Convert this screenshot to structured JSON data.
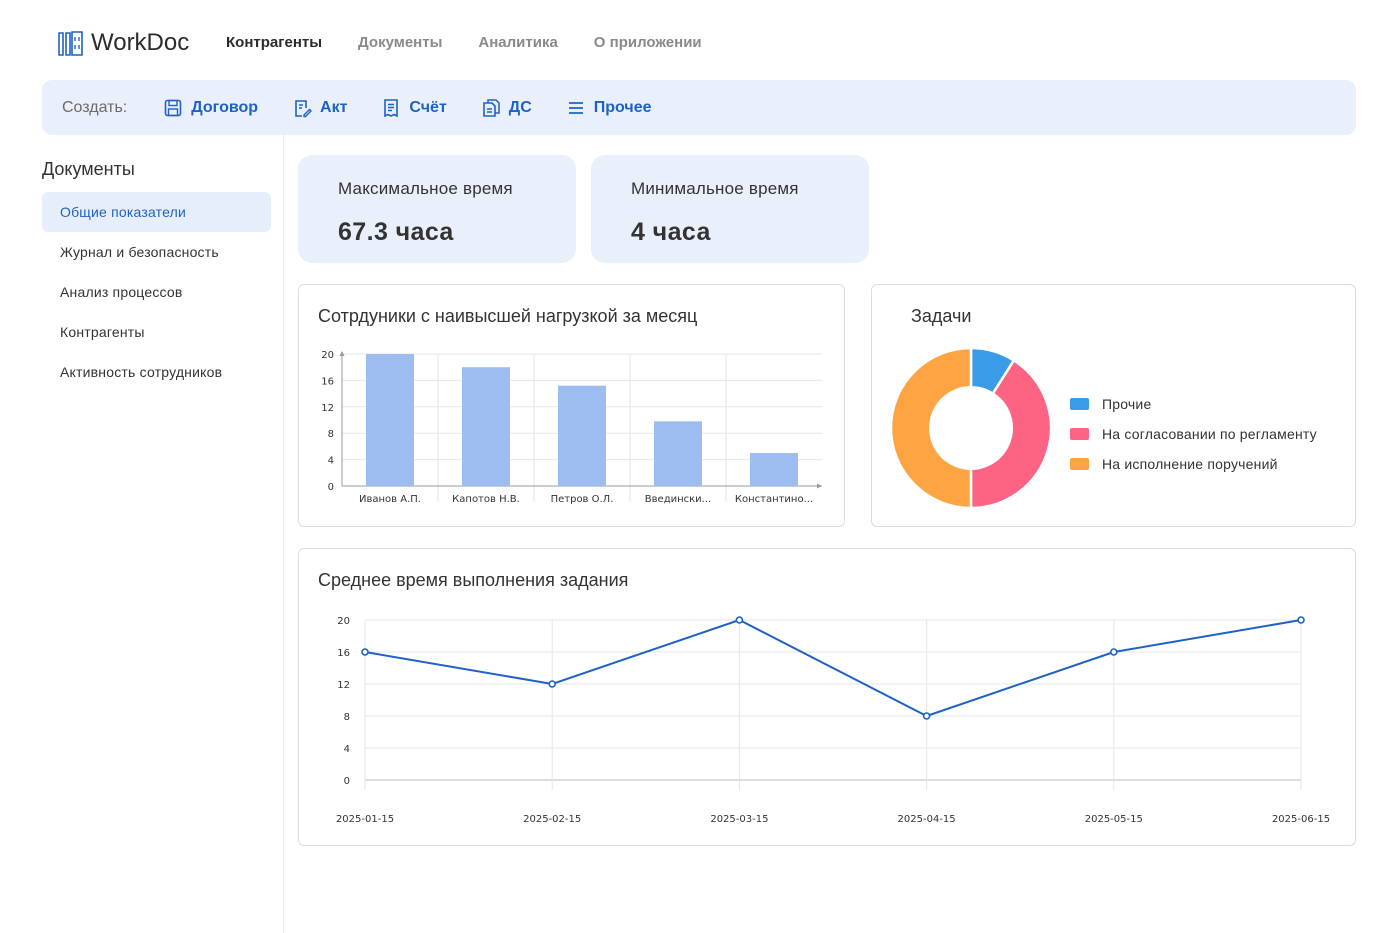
{
  "app": {
    "name": "WorkDoc"
  },
  "nav": [
    {
      "label": "Контрагенты",
      "active": true
    },
    {
      "label": "Документы",
      "active": false
    },
    {
      "label": "Аналитика",
      "active": false
    },
    {
      "label": "О приложении",
      "active": false
    }
  ],
  "create": {
    "label": "Создать:",
    "buttons": [
      {
        "label": "Договор",
        "icon": "save-icon"
      },
      {
        "label": "Акт",
        "icon": "edit-document-icon"
      },
      {
        "label": "Счёт",
        "icon": "receipt-icon"
      },
      {
        "label": "ДС",
        "icon": "copy-document-icon"
      },
      {
        "label": "Прочее",
        "icon": "menu-icon"
      }
    ]
  },
  "sidebar": {
    "title": "Документы",
    "items": [
      {
        "label": "Общие показатели",
        "active": true
      },
      {
        "label": "Журнал и безопасность",
        "active": false
      },
      {
        "label": "Анализ процессов",
        "active": false
      },
      {
        "label": "Контрагенты",
        "active": false
      },
      {
        "label": "Активность сотрудников",
        "active": false
      }
    ]
  },
  "stats": [
    {
      "label": "Максимальное время",
      "value": "67.3 часа"
    },
    {
      "label": "Минимальное время",
      "value": "4 часа"
    }
  ],
  "colors": {
    "accent": "#1e63c4",
    "bar": "#9dbdf0",
    "line": "#1f62c5",
    "pie_other": "#3a9ce8",
    "pie_approval": "#fd6383",
    "pie_execution": "#fea443"
  },
  "chart_data": [
    {
      "type": "bar",
      "title": "Сотрдуники с наивысшей нагрузкой за месяц",
      "categories": [
        "Иванов А.П.",
        "Капотов Н.В.",
        "Петров О.Л.",
        "Введински...",
        "Константино..."
      ],
      "values": [
        20,
        18,
        15.2,
        9.8,
        5
      ],
      "yticks": [
        0,
        4,
        8,
        12,
        16,
        20
      ],
      "ylim": [
        0,
        20
      ],
      "grid": true,
      "legend": "none"
    },
    {
      "type": "pie",
      "title": "Задачи",
      "donut": true,
      "legend_position": "right",
      "slices": [
        {
          "label": "Прочие",
          "value": 9,
          "color": "#3a9ce8"
        },
        {
          "label": "На согласовании по регламенту",
          "value": 41,
          "color": "#fd6383"
        },
        {
          "label": "На исполнение поручений",
          "value": 50,
          "color": "#fea443"
        }
      ]
    },
    {
      "type": "line",
      "title": "Среднее время выполнения задания",
      "x": [
        "2025-01-15",
        "2025-02-15",
        "2025-03-15",
        "2025-04-15",
        "2025-05-15",
        "2025-06-15"
      ],
      "series": [
        {
          "values": [
            16,
            12,
            20,
            8,
            16,
            20
          ]
        }
      ],
      "yticks": [
        0,
        4,
        8,
        12,
        16,
        20
      ],
      "ylim": [
        0,
        20
      ],
      "grid": true,
      "legend": "none"
    }
  ]
}
